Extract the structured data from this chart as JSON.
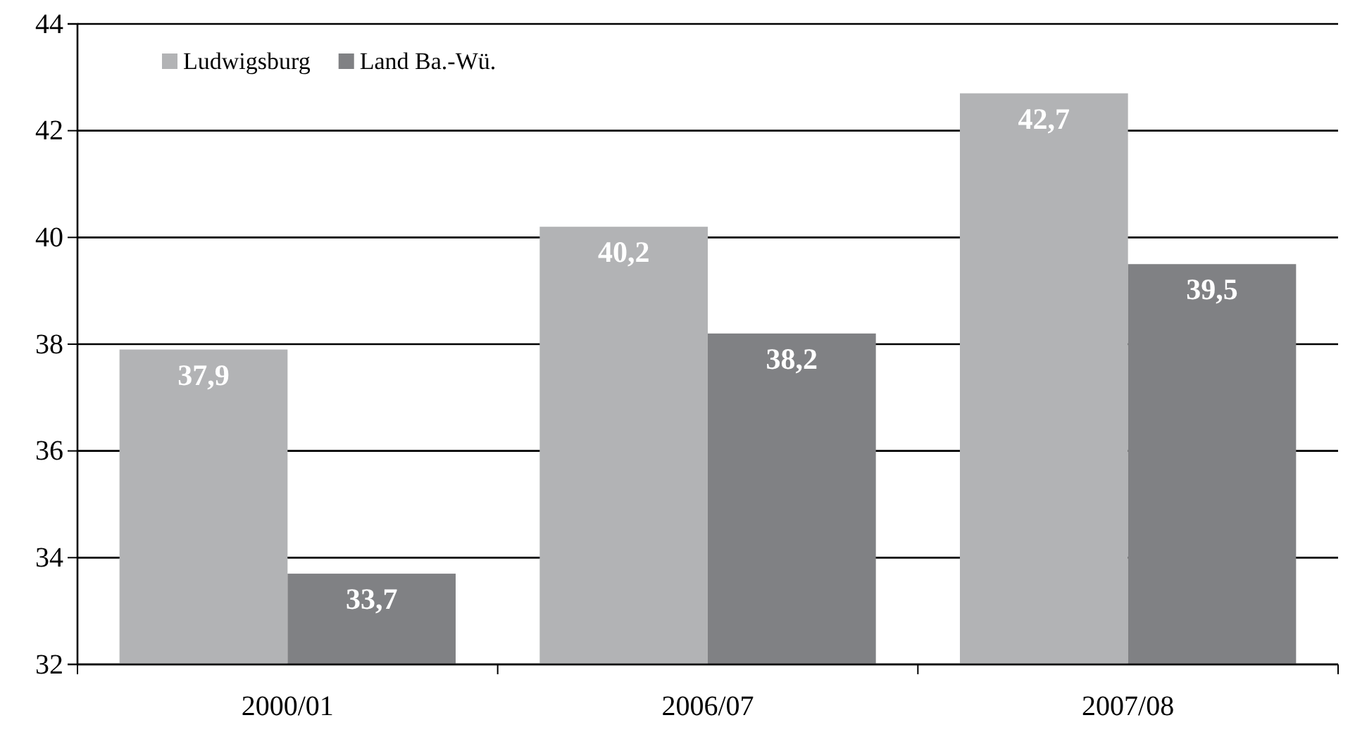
{
  "chart_data": {
    "type": "bar",
    "categories": [
      "2000/01",
      "2006/07",
      "2007/08"
    ],
    "series": [
      {
        "name": "Ludwigsburg",
        "color": "#b2b3b5",
        "values": [
          37.9,
          40.2,
          42.7
        ],
        "value_labels": [
          "37,9",
          "40,2",
          "42,7"
        ]
      },
      {
        "name": "Land Ba.-Wü.",
        "color": "#808184",
        "values": [
          33.7,
          38.2,
          39.5
        ],
        "value_labels": [
          "33,7",
          "38,2",
          "39,5"
        ]
      }
    ],
    "ylim": [
      32,
      44
    ],
    "yticks": [
      32,
      34,
      36,
      38,
      40,
      42,
      44
    ],
    "grid": "y",
    "legend": "top left"
  }
}
